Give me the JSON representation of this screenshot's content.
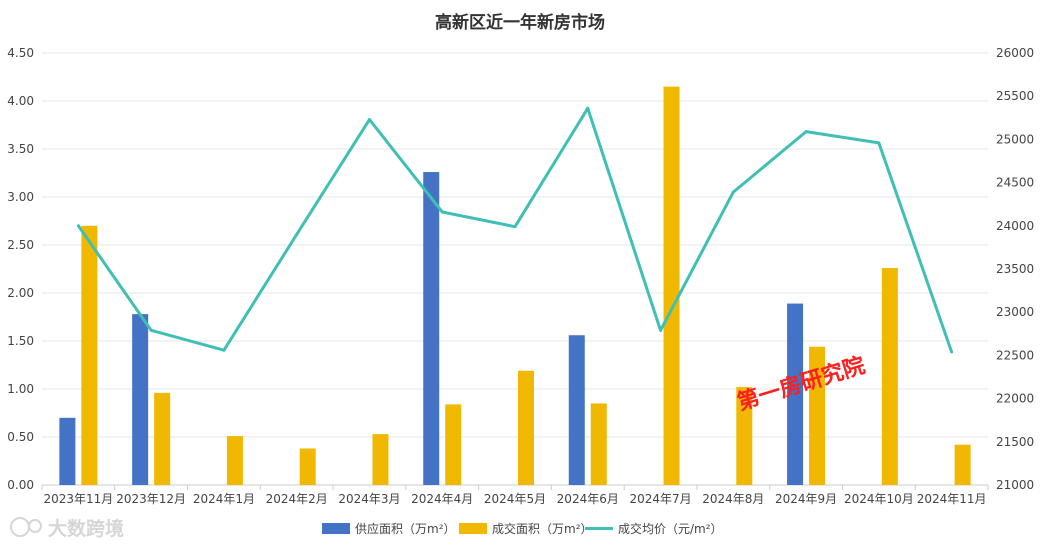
{
  "chart_data": {
    "type": "bar",
    "title": "高新区近一年新房市场",
    "categories": [
      "2023年11月",
      "2023年12月",
      "2024年1月",
      "2024年2月",
      "2024年3月",
      "2024年4月",
      "2024年5月",
      "2024年6月",
      "2024年7月",
      "2024年8月",
      "2024年9月",
      "2024年10月",
      "2024年11月"
    ],
    "series": [
      {
        "name": "供应面积（万m²）",
        "kind": "bar",
        "axis": "left",
        "color": "#4472c4",
        "values": [
          0.7,
          1.78,
          0,
          0,
          0,
          3.26,
          0,
          1.56,
          0,
          0,
          1.89,
          0,
          0
        ]
      },
      {
        "name": "成交面积（万m²）",
        "kind": "bar",
        "axis": "left",
        "color": "#f0b800",
        "values": [
          2.7,
          0.96,
          0.51,
          0.38,
          0.53,
          0.84,
          1.19,
          0.85,
          4.15,
          1.02,
          1.44,
          2.26,
          0.42
        ]
      },
      {
        "name": "成交均价（元/m²）",
        "kind": "line",
        "axis": "right",
        "color": "#3fbfb5",
        "values": [
          24000,
          22790,
          22560,
          23900,
          25230,
          24160,
          23990,
          25360,
          22790,
          24390,
          25090,
          24960,
          22540
        ]
      }
    ],
    "y_left": {
      "min": 0,
      "max": 4.5,
      "ticks": [
        "0.00",
        "0.50",
        "1.00",
        "1.50",
        "2.00",
        "2.50",
        "3.00",
        "3.50",
        "4.00",
        "4.50"
      ]
    },
    "y_right": {
      "min": 21000,
      "max": 26000,
      "ticks": [
        "21000",
        "21500",
        "22000",
        "22500",
        "23000",
        "23500",
        "24000",
        "24500",
        "25000",
        "25500",
        "26000"
      ]
    },
    "grid": true,
    "legend_position": "bottom-center"
  },
  "watermark": {
    "text": "第一房研究院"
  },
  "logo": {
    "text": "大数跨境"
  }
}
